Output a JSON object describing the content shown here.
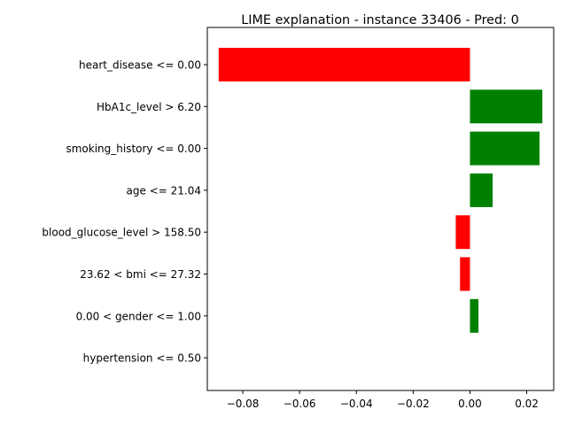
{
  "chart_data": {
    "type": "bar",
    "orientation": "horizontal",
    "title": "LIME explanation - instance 33406 - Pred: 0",
    "xlabel": "",
    "ylabel": "",
    "xlim": [
      -0.0925,
      0.0295
    ],
    "xticks": [
      -0.08,
      -0.06,
      -0.04,
      -0.02,
      0.0,
      0.02
    ],
    "xtick_labels": [
      "−0.08",
      "−0.06",
      "−0.04",
      "−0.02",
      "0.00",
      "0.02"
    ],
    "grid": false,
    "legend": "none",
    "categories": [
      "heart_disease <= 0.00",
      "HbA1c_level > 6.20",
      "smoking_history <= 0.00",
      "age <= 21.04",
      "blood_glucose_level > 158.50",
      "23.62 < bmi <= 27.32",
      "0.00 < gender <= 1.00",
      "hypertension <= 0.50"
    ],
    "values": [
      -0.0885,
      0.0255,
      0.0245,
      0.008,
      -0.005,
      -0.0035,
      0.003,
      0.0
    ],
    "positive_color": "#008000",
    "negative_color": "#ff0000"
  }
}
